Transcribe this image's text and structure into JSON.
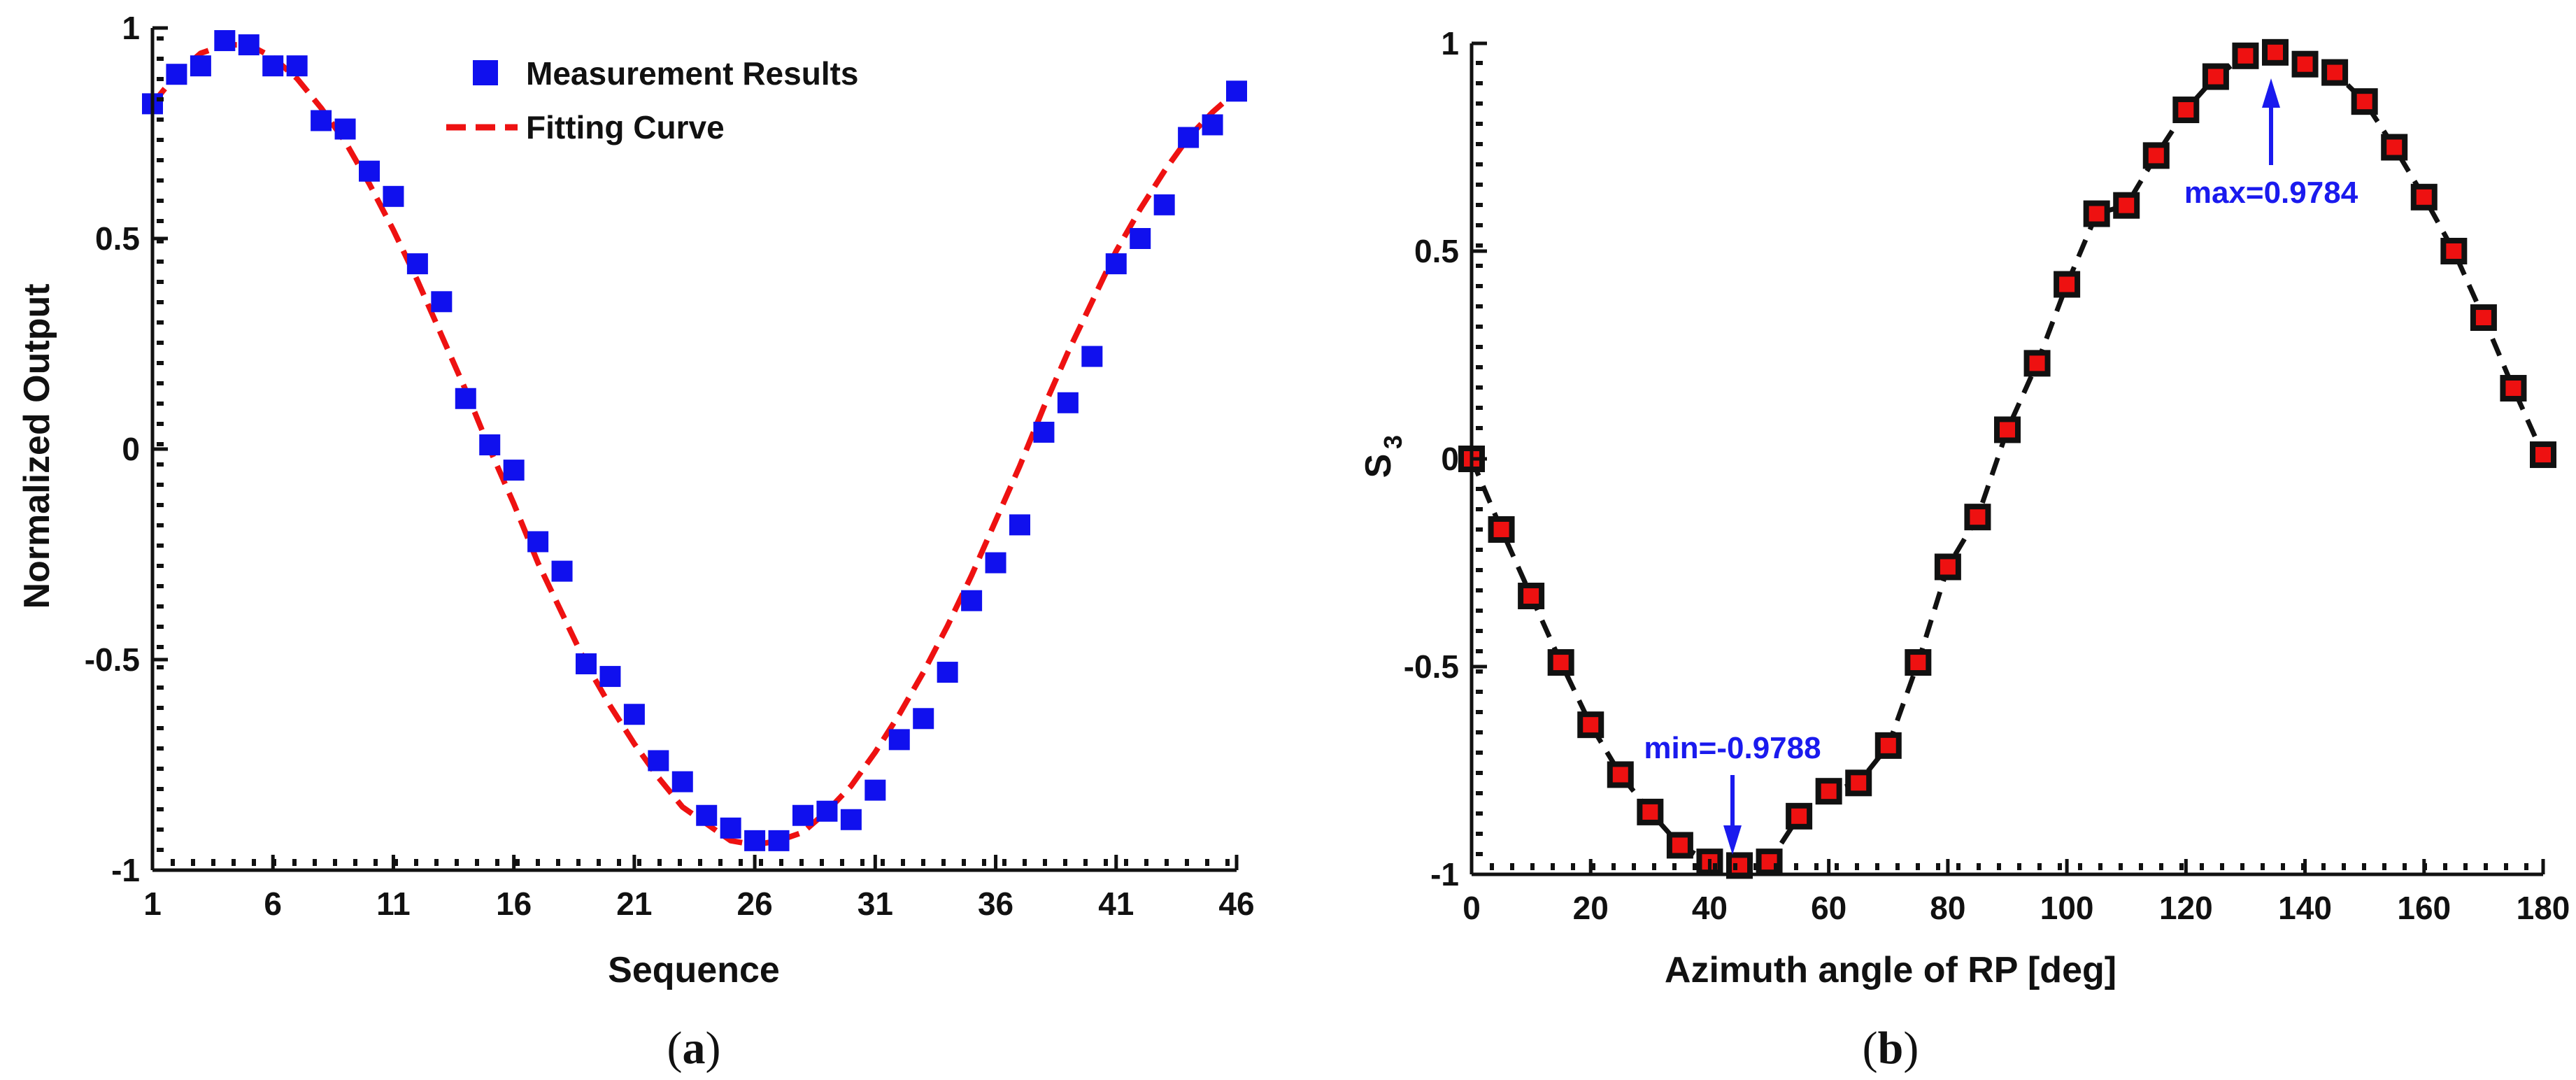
{
  "panels": [
    {
      "caption_open": "(",
      "caption_letter": "a",
      "caption_close": ")",
      "chart_data": {
        "type": "scatter",
        "title": "",
        "xlabel": "Sequence",
        "ylabel": "Normalized Output",
        "xlim": [
          1,
          46
        ],
        "ylim": [
          -1,
          1
        ],
        "xticks": [
          1,
          6,
          11,
          16,
          21,
          26,
          31,
          36,
          41,
          46
        ],
        "xtick_labels": [
          "1",
          "6",
          "11",
          "16",
          "21",
          "26",
          "31",
          "36",
          "41",
          "46"
        ],
        "yticks": [
          -1,
          -0.5,
          0,
          0.5,
          1
        ],
        "ytick_labels": [
          "-1",
          "-0.5",
          "0",
          "0.5",
          "1"
        ],
        "grid": false,
        "legend_position": "top-center",
        "series": [
          {
            "name": "Measurement Results",
            "kind": "markers",
            "marker": "square",
            "color": "#1010ee",
            "x": [
              1,
              2,
              3,
              4,
              5,
              6,
              7,
              8,
              9,
              10,
              11,
              12,
              13,
              14,
              15,
              16,
              17,
              18,
              19,
              20,
              21,
              22,
              23,
              24,
              25,
              26,
              27,
              28,
              29,
              30,
              31,
              32,
              33,
              34,
              35,
              36,
              37,
              38,
              39,
              40,
              41,
              42,
              43,
              44,
              45,
              46
            ],
            "y": [
              0.82,
              0.89,
              0.91,
              0.97,
              0.96,
              0.91,
              0.91,
              0.78,
              0.76,
              0.66,
              0.6,
              0.44,
              0.35,
              0.12,
              0.01,
              -0.05,
              -0.22,
              -0.29,
              -0.51,
              -0.54,
              -0.63,
              -0.74,
              -0.79,
              -0.87,
              -0.9,
              -0.93,
              -0.93,
              -0.87,
              -0.86,
              -0.88,
              -0.81,
              -0.69,
              -0.64,
              -0.53,
              -0.36,
              -0.27,
              -0.18,
              0.04,
              0.11,
              0.22,
              0.44,
              0.5,
              0.58,
              0.74,
              0.77,
              0.85
            ]
          },
          {
            "name": "Fitting Curve",
            "kind": "line",
            "linestyle": "dashed",
            "color": "#ee1111",
            "x": [
              1,
              2,
              3,
              4,
              5,
              6,
              7,
              8,
              9,
              10,
              11,
              12,
              13,
              14,
              15,
              16,
              17,
              18,
              19,
              20,
              21,
              22,
              23,
              24,
              25,
              26,
              27,
              28,
              29,
              30,
              31,
              32,
              33,
              34,
              35,
              36,
              37,
              38,
              39,
              40,
              41,
              42,
              43,
              44,
              45,
              46
            ],
            "y": [
              0.82,
              0.89,
              0.94,
              0.96,
              0.96,
              0.93,
              0.88,
              0.81,
              0.73,
              0.63,
              0.52,
              0.4,
              0.27,
              0.14,
              0.0,
              -0.13,
              -0.27,
              -0.39,
              -0.51,
              -0.61,
              -0.7,
              -0.78,
              -0.85,
              -0.89,
              -0.93,
              -0.94,
              -0.93,
              -0.91,
              -0.86,
              -0.8,
              -0.72,
              -0.63,
              -0.53,
              -0.42,
              -0.3,
              -0.17,
              -0.04,
              0.1,
              0.23,
              0.35,
              0.47,
              0.57,
              0.66,
              0.74,
              0.8,
              0.85
            ]
          }
        ],
        "annotations": []
      }
    },
    {
      "caption_open": "(",
      "caption_letter": "b",
      "caption_close": ")",
      "chart_data": {
        "type": "line",
        "title": "",
        "xlabel": "Azimuth angle of RP [deg]",
        "ylabel_main": "S",
        "ylabel_sub": "3",
        "xlim": [
          0,
          180
        ],
        "ylim": [
          -1,
          1
        ],
        "xticks": [
          0,
          20,
          40,
          60,
          80,
          100,
          120,
          140,
          160,
          180
        ],
        "xtick_labels": [
          "0",
          "20",
          "40",
          "60",
          "80",
          "100",
          "120",
          "140",
          "160",
          "180"
        ],
        "yticks": [
          -1,
          -0.5,
          0,
          0.5,
          1
        ],
        "ytick_labels": [
          "-1",
          "-0.5",
          "0",
          "0.5",
          "1"
        ],
        "grid": false,
        "series": [
          {
            "name": "S3",
            "kind": "dashed-line-with-markers",
            "line_color": "#111111",
            "marker": "square",
            "marker_edge_color": "#111111",
            "marker_face_color": "#ee1111",
            "x": [
              0,
              5,
              10,
              15,
              20,
              25,
              30,
              35,
              40,
              45,
              50,
              55,
              60,
              65,
              70,
              75,
              80,
              85,
              90,
              95,
              100,
              105,
              110,
              115,
              120,
              125,
              130,
              135,
              140,
              145,
              150,
              155,
              160,
              165,
              170,
              175,
              180
            ],
            "y": [
              0.0,
              -0.17,
              -0.33,
              -0.49,
              -0.64,
              -0.76,
              -0.85,
              -0.93,
              -0.97,
              -0.9788,
              -0.97,
              -0.86,
              -0.8,
              -0.78,
              -0.69,
              -0.49,
              -0.26,
              -0.14,
              0.07,
              0.23,
              0.42,
              0.59,
              0.61,
              0.73,
              0.84,
              0.92,
              0.97,
              0.9784,
              0.95,
              0.93,
              0.86,
              0.75,
              0.63,
              0.5,
              0.34,
              0.17,
              0.01
            ]
          }
        ],
        "annotations": [
          {
            "text": "min=-0.9788",
            "x": 45,
            "y": -0.9788,
            "color": "#1a1aee",
            "arrow": "down"
          },
          {
            "text": "max=0.9784",
            "x": 135,
            "y": 0.9784,
            "color": "#1a1aee",
            "arrow": "up"
          }
        ]
      }
    }
  ]
}
